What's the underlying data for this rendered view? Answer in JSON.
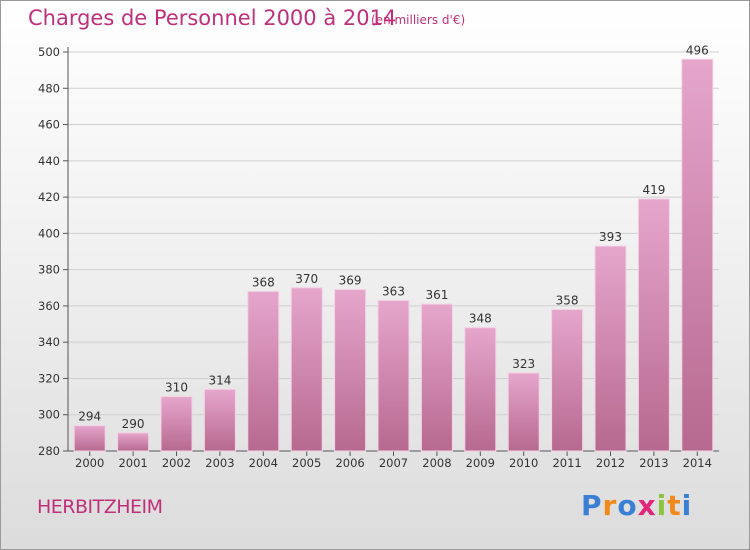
{
  "title": "Charges de Personnel 2000 à 2014",
  "subtitle": "(en milliers d'€)",
  "commune": "HERBITZHEIM",
  "logo": {
    "letters": [
      "P",
      "r",
      "o",
      "x",
      "i",
      "t",
      "i"
    ],
    "colors": [
      "#3a7fd4",
      "#f08a1c",
      "#3a7fd4",
      "#e0267a",
      "#8bc53f",
      "#f08a1c",
      "#3a7fd4"
    ]
  },
  "colors": {
    "title": "#c0307a",
    "bar_top": "#e6a6cc",
    "bar_bottom": "#b7698f",
    "bar_stroke": "#f3d2e5"
  },
  "chart_data": {
    "type": "bar",
    "categories": [
      "2000",
      "2001",
      "2002",
      "2003",
      "2004",
      "2005",
      "2006",
      "2007",
      "2008",
      "2009",
      "2010",
      "2011",
      "2012",
      "2013",
      "2014"
    ],
    "values": [
      294,
      290,
      310,
      314,
      368,
      370,
      369,
      363,
      361,
      348,
      323,
      358,
      393,
      419,
      496
    ],
    "ylim": [
      280,
      500
    ],
    "yticks": [
      280,
      300,
      320,
      340,
      360,
      380,
      400,
      420,
      440,
      460,
      480,
      500
    ],
    "grid": true
  }
}
